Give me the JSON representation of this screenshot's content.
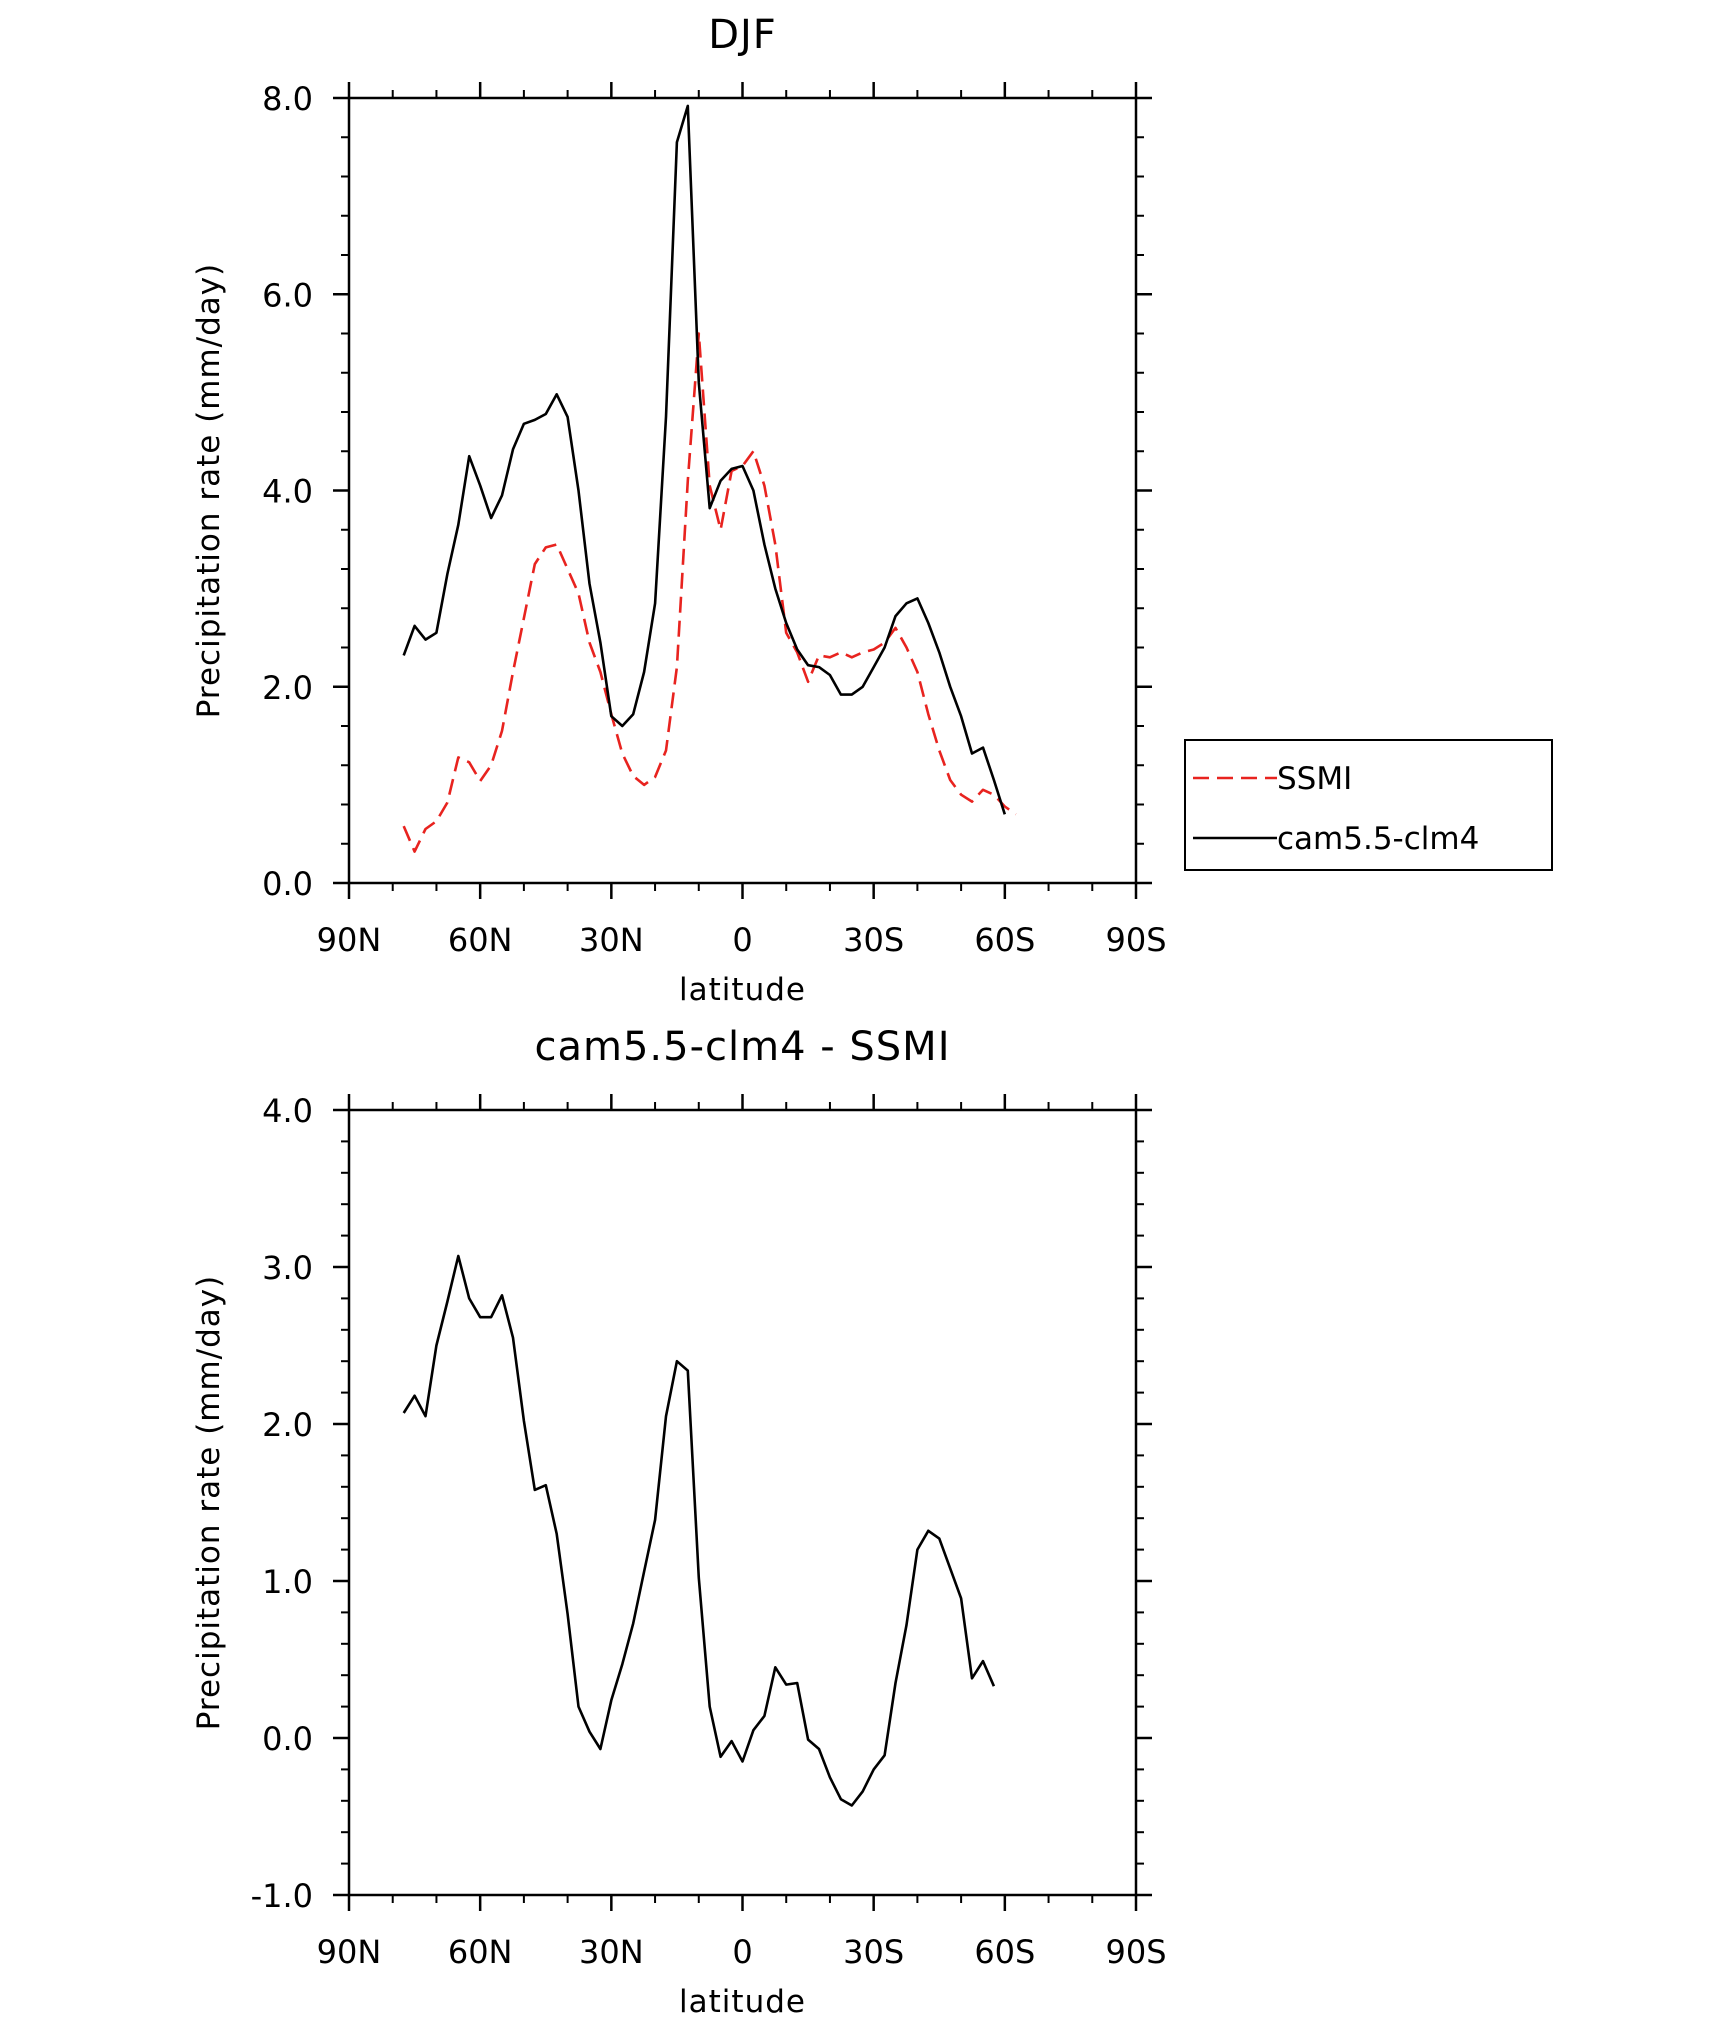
{
  "chart_data": [
    {
      "type": "line",
      "title": "DJF",
      "xlabel": "latitude",
      "ylabel": "Precipitation rate (mm/day)",
      "xlim": [
        90,
        -90
      ],
      "ylim": [
        0,
        8
      ],
      "yticks": [
        "0.0",
        "2.0",
        "4.0",
        "6.0",
        "8.0"
      ],
      "ytick_values": [
        0,
        2,
        4,
        6,
        8
      ],
      "xticks": [
        "90N",
        "60N",
        "30N",
        "0",
        "30S",
        "60S",
        "90S"
      ],
      "xtick_values": [
        90,
        60,
        30,
        0,
        -30,
        -60,
        -90
      ],
      "legend_position": "right",
      "series": [
        {
          "name": "SSMI",
          "color": "#e8231f",
          "dash": "dashed",
          "x": [
            77.5,
            75,
            72.5,
            70,
            67.5,
            65,
            62.5,
            60,
            57.5,
            55,
            52.5,
            50,
            47.5,
            45,
            42.5,
            40,
            37.5,
            35,
            32.5,
            30,
            27.5,
            25,
            22.5,
            20,
            17.5,
            15,
            12.5,
            10,
            7.5,
            5,
            2.5,
            0,
            -2.5,
            -5,
            -7.5,
            -10,
            -12.5,
            -15,
            -17.5,
            -20,
            -22.5,
            -25,
            -27.5,
            -30,
            -32.5,
            -35,
            -37.5,
            -40,
            -42.5,
            -45,
            -47.5,
            -50,
            -52.5,
            -55,
            -57.5,
            -60,
            -62.5,
            -65,
            -67.5,
            -70,
            -72.5,
            -75,
            -77.5
          ],
          "y": [
            0.58,
            0.32,
            0.55,
            0.63,
            0.82,
            1.28,
            1.23,
            1.04,
            1.2,
            1.55,
            2.15,
            2.7,
            3.25,
            3.42,
            3.45,
            3.2,
            2.95,
            2.45,
            2.15,
            1.72,
            1.32,
            1.09,
            1.0,
            1.08,
            1.35,
            2.2,
            4.1,
            5.6,
            4.05,
            3.6,
            4.2,
            4.25,
            4.4,
            4.05,
            3.45,
            2.55,
            2.35,
            2.05,
            2.32,
            2.3,
            2.35,
            2.3,
            2.35,
            2.38,
            2.45,
            2.6,
            2.4,
            2.15,
            1.72,
            1.35,
            1.05,
            0.9,
            0.83,
            0.95,
            0.9,
            0.78,
            0.7,
            null,
            null,
            null,
            null,
            null,
            null
          ]
        },
        {
          "name": "cam5.5-clm4",
          "color": "#000000",
          "dash": "solid",
          "x": [
            77.5,
            75,
            72.5,
            70,
            67.5,
            65,
            62.5,
            60,
            57.5,
            55,
            52.5,
            50,
            47.5,
            45,
            42.5,
            40,
            37.5,
            35,
            32.5,
            30,
            27.5,
            25,
            22.5,
            20,
            17.5,
            15,
            12.5,
            10,
            7.5,
            5,
            2.5,
            0,
            -2.5,
            -5,
            -7.5,
            -10,
            -12.5,
            -15,
            -17.5,
            -20,
            -22.5,
            -25,
            -27.5,
            -30,
            -32.5,
            -35,
            -37.5,
            -40,
            -42.5,
            -45,
            -47.5,
            -50,
            -52.5,
            -55,
            -57.5,
            -60,
            -62.5,
            -65,
            -67.5,
            -70,
            -72.5,
            -75,
            -77.5
          ],
          "y": [
            2.32,
            2.62,
            2.48,
            2.55,
            3.15,
            3.65,
            4.35,
            4.05,
            3.72,
            3.95,
            4.42,
            4.68,
            4.72,
            4.78,
            4.98,
            4.75,
            4.0,
            3.05,
            2.45,
            1.7,
            1.6,
            1.72,
            2.15,
            2.85,
            4.75,
            7.55,
            7.92,
            5.1,
            3.82,
            4.1,
            4.22,
            4.25,
            4.0,
            3.45,
            3.0,
            2.65,
            2.38,
            2.22,
            2.2,
            2.12,
            1.92,
            1.92,
            2.0,
            2.2,
            2.4,
            2.72,
            2.85,
            2.9,
            2.65,
            2.35,
            2.0,
            1.7,
            1.32,
            1.38,
            1.05,
            0.7,
            null,
            null,
            null,
            null,
            null,
            null,
            null
          ]
        }
      ]
    },
    {
      "type": "line",
      "title": "cam5.5-clm4 - SSMI",
      "xlabel": "latitude",
      "ylabel": "Precipitation rate (mm/day)",
      "xlim": [
        90,
        -90
      ],
      "ylim": [
        -1,
        4
      ],
      "yticks": [
        "-1.0",
        "0.0",
        "1.0",
        "2.0",
        "3.0",
        "4.0"
      ],
      "ytick_values": [
        -1,
        0,
        1,
        2,
        3,
        4
      ],
      "xticks": [
        "90N",
        "60N",
        "30N",
        "0",
        "30S",
        "60S",
        "90S"
      ],
      "xtick_values": [
        90,
        60,
        30,
        0,
        -30,
        -60,
        -90
      ],
      "series": [
        {
          "color": "#000000",
          "dash": "solid",
          "x": [
            77.5,
            75,
            72.5,
            70,
            67.5,
            65,
            62.5,
            60,
            57.5,
            55,
            52.5,
            50,
            47.5,
            45,
            42.5,
            40,
            37.5,
            35,
            32.5,
            30,
            27.5,
            25,
            22.5,
            20,
            17.5,
            15,
            12.5,
            10,
            7.5,
            5,
            2.5,
            0,
            -2.5,
            -5,
            -7.5,
            -10,
            -12.5,
            -15,
            -17.5,
            -20,
            -22.5,
            -25,
            -27.5,
            -30,
            -32.5,
            -35,
            -37.5,
            -40,
            -42.5,
            -45,
            -47.5,
            -50,
            -52.5,
            -55,
            -57.5,
            -60,
            -62.5,
            -65,
            -67.5,
            -70,
            -72.5,
            -75
          ],
          "y": [
            2.07,
            2.18,
            2.05,
            2.5,
            2.78,
            3.07,
            2.8,
            2.68,
            2.68,
            2.82,
            2.55,
            2.02,
            1.58,
            1.61,
            1.3,
            0.79,
            0.2,
            0.04,
            -0.07,
            0.24,
            0.47,
            0.73,
            1.06,
            1.39,
            2.05,
            2.4,
            2.34,
            1.02,
            0.2,
            -0.12,
            -0.02,
            -0.15,
            0.05,
            0.14,
            0.45,
            0.34,
            0.35,
            -0.01,
            -0.07,
            -0.25,
            -0.39,
            -0.43,
            -0.34,
            -0.2,
            -0.11,
            0.35,
            0.72,
            1.2,
            1.32,
            1.27,
            1.08,
            0.89,
            0.38,
            0.49,
            0.33,
            null,
            null,
            null,
            null,
            null,
            null,
            null
          ]
        }
      ]
    }
  ]
}
